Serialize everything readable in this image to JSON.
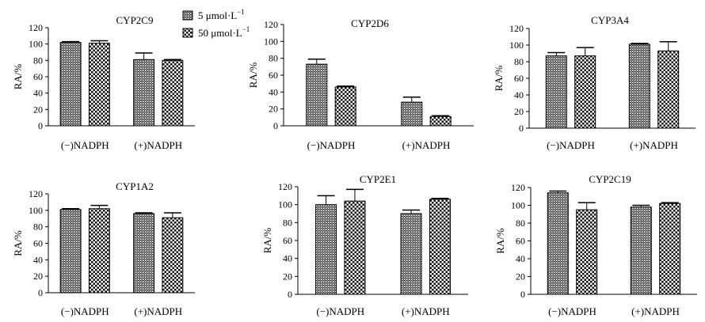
{
  "legend": [
    {
      "label_main": "5 μmol·L",
      "label_sup": "−1",
      "pattern": "dense"
    },
    {
      "label_main": "50 μmol·L",
      "label_sup": "−1",
      "pattern": "checker"
    }
  ],
  "chart_data": [
    {
      "type": "bar",
      "title": "CYP2C9",
      "ylabel": "RA/%",
      "categories": [
        "(−)NADPH",
        "(+)NADPH"
      ],
      "ylim": [
        0,
        120
      ],
      "yticks": [
        0,
        20,
        40,
        60,
        80,
        100,
        120
      ],
      "series": [
        {
          "values": [
            102,
            81
          ],
          "errors": [
            1,
            8
          ]
        },
        {
          "values": [
            101,
            80
          ],
          "errors": [
            3,
            1
          ]
        }
      ]
    },
    {
      "type": "bar",
      "title": "CYP2D6",
      "ylabel": "RA/%",
      "categories": [
        "(−)NADPH",
        "(+)NADPH"
      ],
      "ylim": [
        0,
        120
      ],
      "yticks": [
        0,
        20,
        40,
        60,
        80,
        100,
        120
      ],
      "series": [
        {
          "values": [
            73,
            28
          ],
          "errors": [
            6,
            6
          ]
        },
        {
          "values": [
            46,
            11
          ],
          "errors": [
            1,
            1
          ]
        }
      ]
    },
    {
      "type": "bar",
      "title": "CYP3A4",
      "ylabel": "RA/%",
      "categories": [
        "(−)NADPH",
        "(+)NADPH"
      ],
      "ylim": [
        0,
        120
      ],
      "yticks": [
        0,
        20,
        40,
        60,
        80,
        100,
        120
      ],
      "series": [
        {
          "values": [
            87,
            101
          ],
          "errors": [
            4,
            1
          ]
        },
        {
          "values": [
            87,
            93
          ],
          "errors": [
            10,
            11
          ]
        }
      ]
    },
    {
      "type": "bar",
      "title": "CYP1A2",
      "ylabel": "RA/%",
      "categories": [
        "(−)NADPH",
        "(+)NADPH"
      ],
      "ylim": [
        0,
        120
      ],
      "yticks": [
        0,
        20,
        40,
        60,
        80,
        100,
        120
      ],
      "series": [
        {
          "values": [
            101,
            96
          ],
          "errors": [
            1,
            1
          ]
        },
        {
          "values": [
            102,
            91
          ],
          "errors": [
            4,
            6
          ]
        }
      ]
    },
    {
      "type": "bar",
      "title": "CYP2E1",
      "ylabel": "RA/%",
      "categories": [
        "(−)NADPH",
        "(+)NADPH"
      ],
      "ylim": [
        0,
        120
      ],
      "yticks": [
        0,
        20,
        40,
        60,
        80,
        100,
        120
      ],
      "series": [
        {
          "values": [
            100,
            90
          ],
          "errors": [
            10,
            4
          ]
        },
        {
          "values": [
            104,
            106
          ],
          "errors": [
            13,
            1
          ]
        }
      ]
    },
    {
      "type": "bar",
      "title": "CYP2C19",
      "ylabel": "RA/%",
      "categories": [
        "(−)NADPH",
        "(+)NADPH"
      ],
      "ylim": [
        0,
        120
      ],
      "yticks": [
        0,
        20,
        40,
        60,
        80,
        100,
        120
      ],
      "series": [
        {
          "values": [
            114,
            98
          ],
          "errors": [
            2,
            2
          ]
        },
        {
          "values": [
            95,
            102
          ],
          "errors": [
            8,
            1
          ]
        }
      ]
    }
  ]
}
